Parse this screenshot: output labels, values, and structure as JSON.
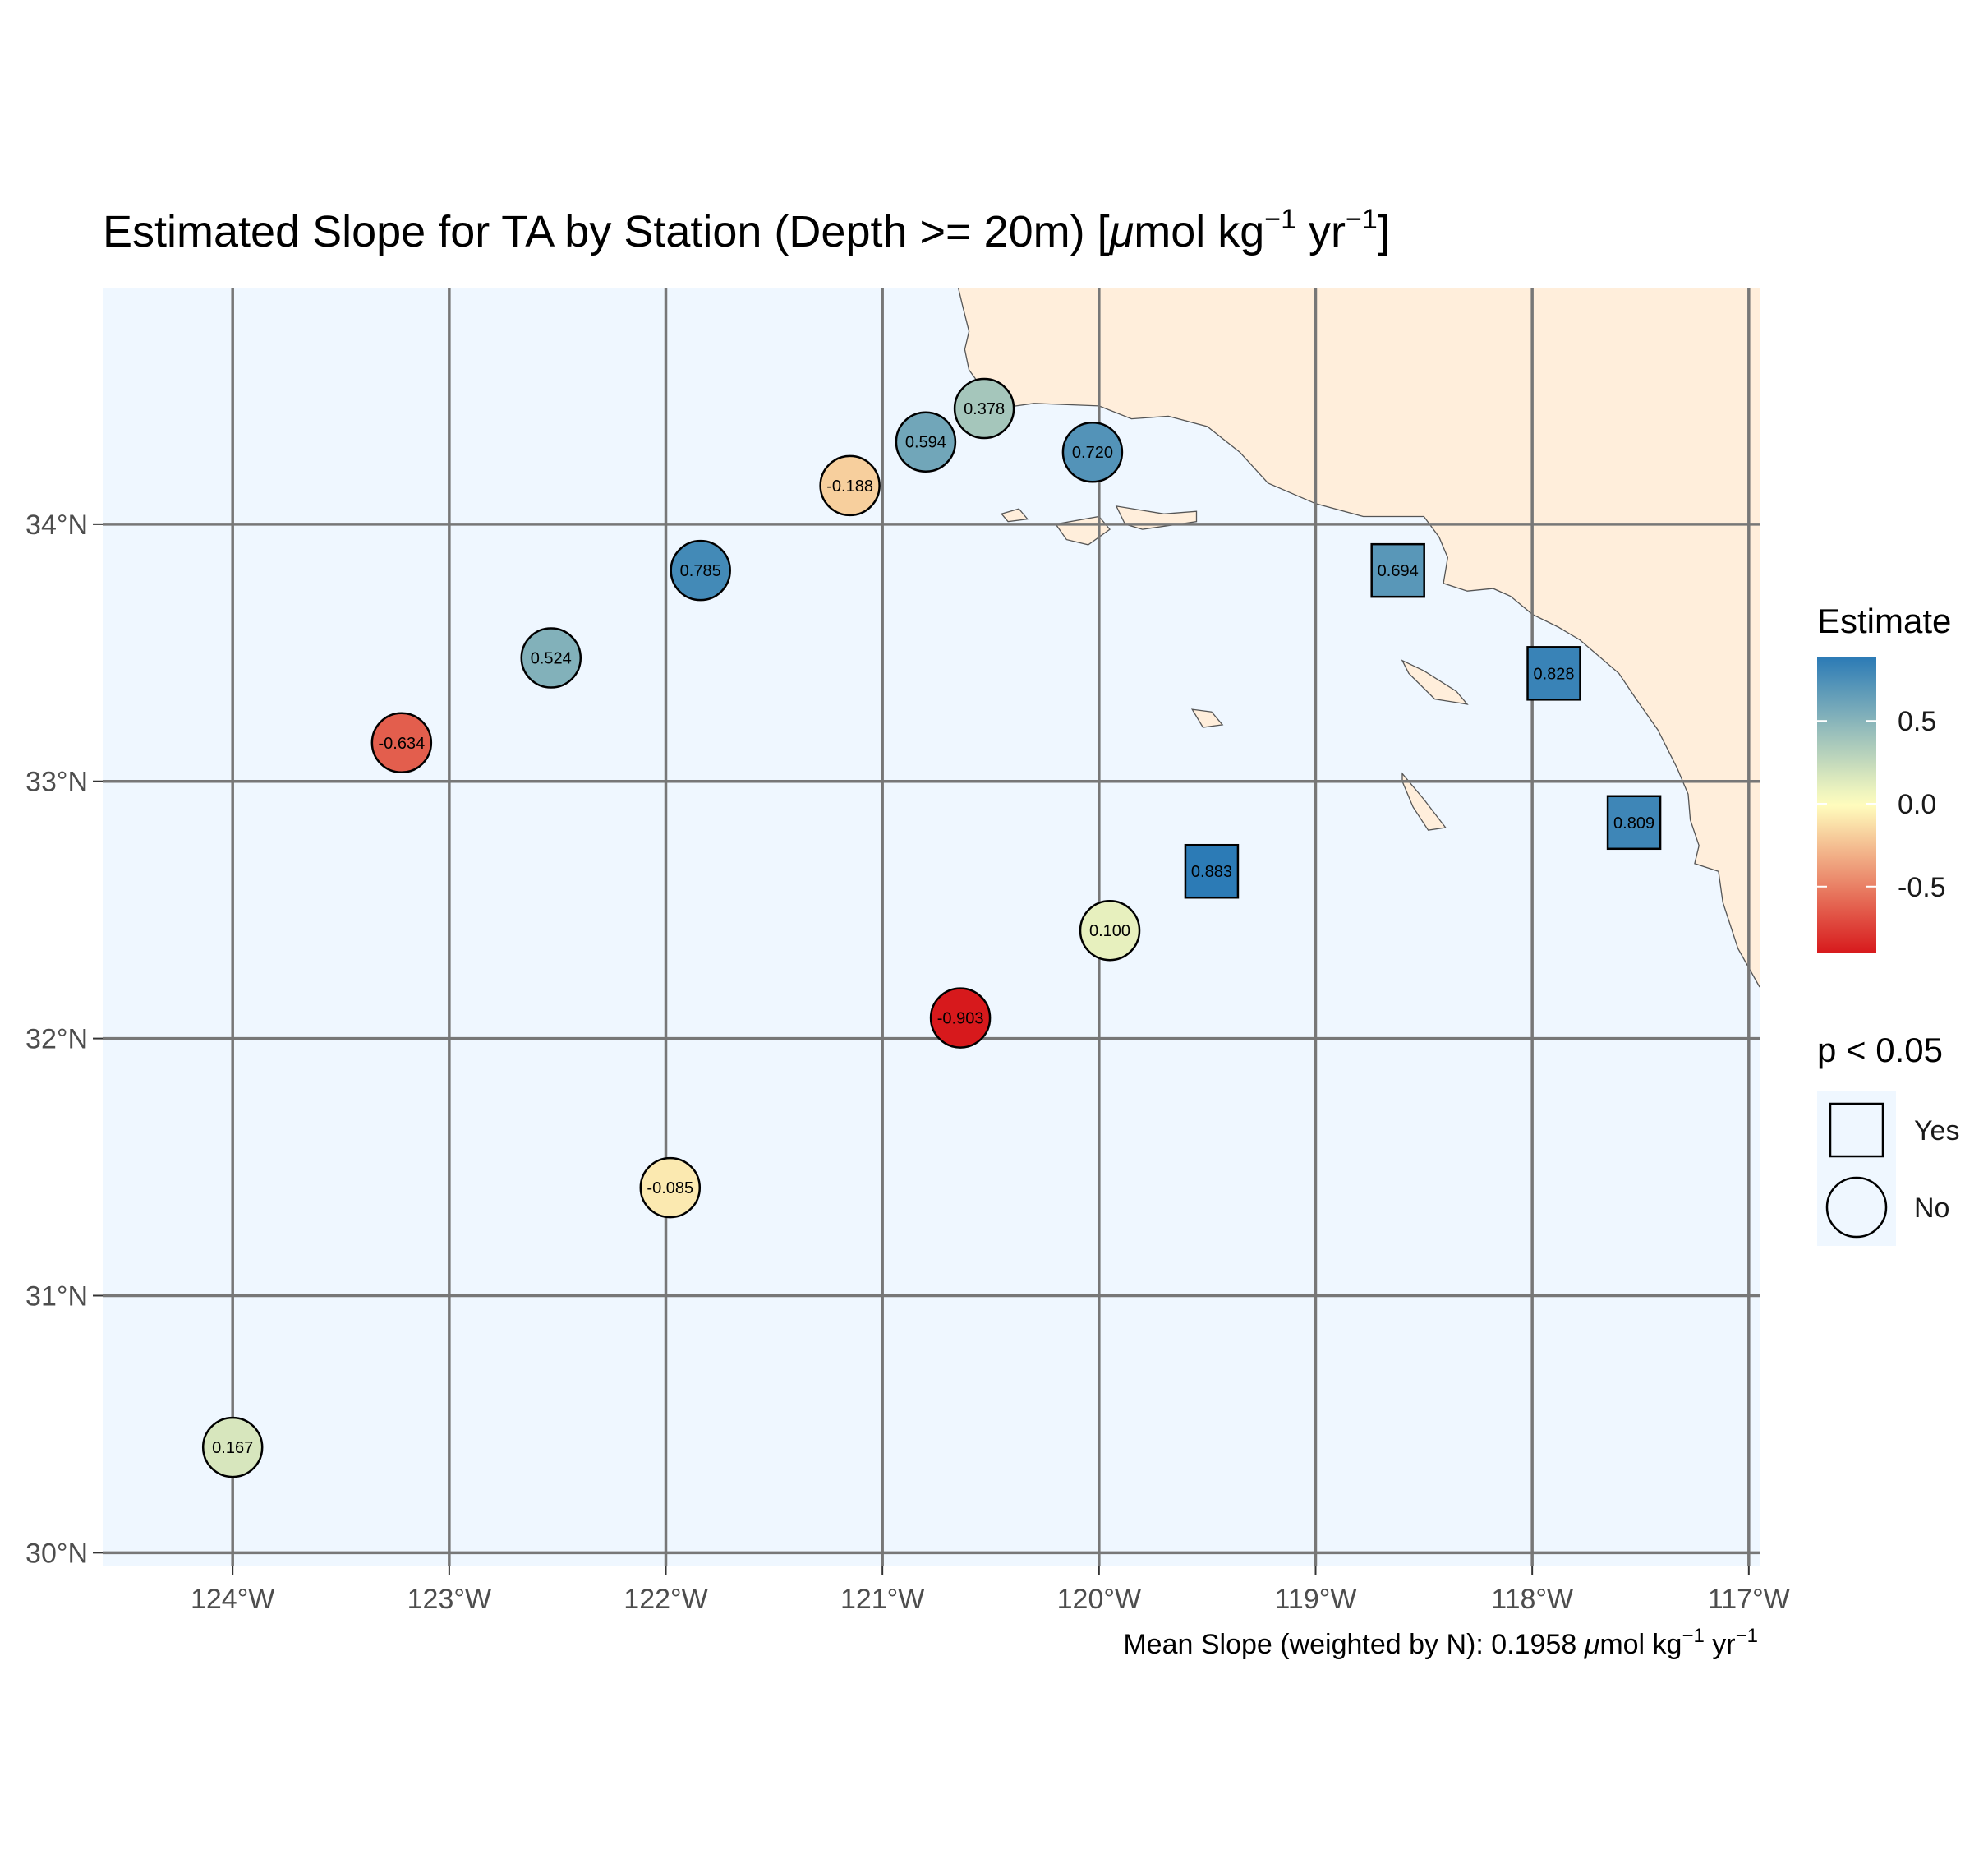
{
  "chart_data": {
    "type": "scatter",
    "title": {
      "main": "Estimated Slope for TA by Station (Depth >= 20m) [",
      "mu": "μ",
      "unit1": "mol kg",
      "exp1": "−1",
      "unit2": " yr",
      "exp2": "−1",
      "close": "]"
    },
    "caption": {
      "text": "Mean Slope (weighted by N): 0.1958 ",
      "mu": "μ",
      "unit1": "mol kg",
      "exp1": "−1",
      "unit2": " yr",
      "exp2": "−1"
    },
    "xlim": [
      -124.6,
      -116.95
    ],
    "ylim": [
      29.95,
      34.92
    ],
    "x_ticks": [
      -124,
      -123,
      -122,
      -121,
      -120,
      -119,
      -118,
      -117
    ],
    "x_tick_labels": [
      "124°W",
      "123°W",
      "122°W",
      "121°W",
      "120°W",
      "119°W",
      "118°W",
      "117°W"
    ],
    "y_ticks": [
      30,
      31,
      32,
      33,
      34
    ],
    "y_tick_labels": [
      "30°N",
      "31°N",
      "32°N",
      "33°N",
      "34°N"
    ],
    "grid": true,
    "ocean_color": "#eff7ff",
    "land_color": "#ffeedb",
    "grid_color": "#777777",
    "color_scale": {
      "name": "Estimate",
      "type": "diverging",
      "domain": [
        -0.903,
        0.883
      ],
      "low_color": "#d7191c",
      "mid_color": "#ffffbf",
      "high_color": "#2c7bb6",
      "ticks": [
        0.5,
        0.0,
        -0.5
      ],
      "tick_labels": [
        "0.5",
        "0.0",
        "-0.5"
      ]
    },
    "shape_legend": {
      "title": "p < 0.05",
      "items": [
        {
          "label": "Yes",
          "shape": "square"
        },
        {
          "label": "No",
          "shape": "circle"
        }
      ]
    },
    "legend_position": "right",
    "points": [
      {
        "lon": -124.0,
        "lat": 30.41,
        "estimate": 0.167,
        "label": "0.167",
        "significant": false
      },
      {
        "lon": -121.98,
        "lat": 31.42,
        "estimate": -0.085,
        "label": "-0.085",
        "significant": false
      },
      {
        "lon": -120.64,
        "lat": 32.08,
        "estimate": -0.903,
        "label": "-0.903",
        "significant": false
      },
      {
        "lon": -119.95,
        "lat": 32.42,
        "estimate": 0.1,
        "label": "0.100",
        "significant": false
      },
      {
        "lon": -123.22,
        "lat": 33.15,
        "estimate": -0.634,
        "label": "-0.634",
        "significant": false
      },
      {
        "lon": -122.53,
        "lat": 33.48,
        "estimate": 0.524,
        "label": "0.524",
        "significant": false
      },
      {
        "lon": -121.84,
        "lat": 33.82,
        "estimate": 0.785,
        "label": "0.785",
        "significant": false
      },
      {
        "lon": -121.15,
        "lat": 34.15,
        "estimate": -0.188,
        "label": "-0.188",
        "significant": false
      },
      {
        "lon": -120.8,
        "lat": 34.32,
        "estimate": 0.594,
        "label": "0.594",
        "significant": false
      },
      {
        "lon": -120.53,
        "lat": 34.45,
        "estimate": 0.378,
        "label": "0.378",
        "significant": false
      },
      {
        "lon": -120.03,
        "lat": 34.28,
        "estimate": 0.72,
        "label": "0.720",
        "significant": false
      },
      {
        "lon": -119.48,
        "lat": 32.65,
        "estimate": 0.883,
        "label": "0.883",
        "significant": true
      },
      {
        "lon": -118.62,
        "lat": 33.82,
        "estimate": 0.694,
        "label": "0.694",
        "significant": true
      },
      {
        "lon": -117.9,
        "lat": 33.42,
        "estimate": 0.828,
        "label": "0.828",
        "significant": true
      },
      {
        "lon": -117.53,
        "lat": 32.84,
        "estimate": 0.809,
        "label": "0.809",
        "significant": true
      }
    ],
    "coastline": [
      [
        -120.65,
        34.92
      ],
      [
        -120.63,
        34.85
      ],
      [
        -120.6,
        34.75
      ],
      [
        -120.62,
        34.68
      ],
      [
        -120.6,
        34.6
      ],
      [
        -120.47,
        34.45
      ],
      [
        -120.3,
        34.47
      ],
      [
        -120.0,
        34.46
      ],
      [
        -119.85,
        34.41
      ],
      [
        -119.68,
        34.42
      ],
      [
        -119.5,
        34.38
      ],
      [
        -119.35,
        34.28
      ],
      [
        -119.22,
        34.16
      ],
      [
        -119.0,
        34.08
      ],
      [
        -118.78,
        34.03
      ],
      [
        -118.5,
        34.03
      ],
      [
        -118.43,
        33.95
      ],
      [
        -118.39,
        33.87
      ],
      [
        -118.41,
        33.77
      ],
      [
        -118.3,
        33.74
      ],
      [
        -118.18,
        33.75
      ],
      [
        -118.1,
        33.72
      ],
      [
        -118.0,
        33.65
      ],
      [
        -117.88,
        33.6
      ],
      [
        -117.78,
        33.55
      ],
      [
        -117.6,
        33.42
      ],
      [
        -117.52,
        33.32
      ],
      [
        -117.42,
        33.2
      ],
      [
        -117.33,
        33.05
      ],
      [
        -117.28,
        32.95
      ],
      [
        -117.27,
        32.85
      ],
      [
        -117.23,
        32.75
      ],
      [
        -117.25,
        32.68
      ],
      [
        -117.14,
        32.65
      ],
      [
        -117.12,
        32.53
      ],
      [
        -117.05,
        32.35
      ],
      [
        -116.95,
        32.2
      ],
      [
        -116.95,
        34.92
      ]
    ],
    "islands": [
      [
        [
          -120.45,
          34.04
        ],
        [
          -120.37,
          34.06
        ],
        [
          -120.33,
          34.02
        ],
        [
          -120.42,
          34.01
        ]
      ],
      [
        [
          -120.2,
          34.0
        ],
        [
          -120.0,
          34.03
        ],
        [
          -119.95,
          33.98
        ],
        [
          -120.05,
          33.92
        ],
        [
          -120.15,
          33.94
        ]
      ],
      [
        [
          -119.92,
          34.07
        ],
        [
          -119.7,
          34.04
        ],
        [
          -119.55,
          34.05
        ],
        [
          -119.55,
          34.01
        ],
        [
          -119.8,
          33.98
        ],
        [
          -119.88,
          34.0
        ]
      ],
      [
        [
          -118.6,
          33.47
        ],
        [
          -118.5,
          33.43
        ],
        [
          -118.35,
          33.35
        ],
        [
          -118.3,
          33.3
        ],
        [
          -118.45,
          33.32
        ],
        [
          -118.57,
          33.42
        ]
      ],
      [
        [
          -118.6,
          33.03
        ],
        [
          -118.5,
          32.93
        ],
        [
          -118.4,
          32.82
        ],
        [
          -118.48,
          32.81
        ],
        [
          -118.55,
          32.9
        ],
        [
          -118.6,
          33.0
        ]
      ],
      [
        [
          -119.57,
          33.28
        ],
        [
          -119.48,
          33.27
        ],
        [
          -119.43,
          33.22
        ],
        [
          -119.52,
          33.21
        ]
      ]
    ]
  }
}
